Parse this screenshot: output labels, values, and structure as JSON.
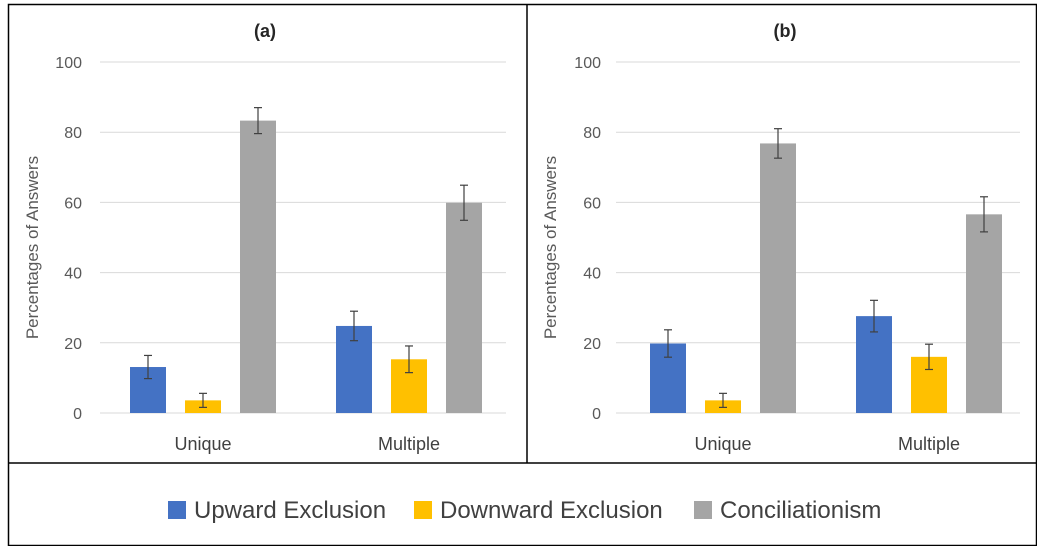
{
  "chart_data": [
    {
      "type": "bar",
      "title": "(a)",
      "ylabel": "Percentages of Answers",
      "xlabel": "",
      "ylim": [
        0,
        100
      ],
      "yticks": [
        0,
        20,
        40,
        60,
        80,
        100
      ],
      "categories": [
        "Unique",
        "Multiple"
      ],
      "grid": true,
      "series": [
        {
          "name": "Upward Exclusion",
          "values": [
            13.1,
            24.8
          ],
          "errors": [
            3.3,
            4.2
          ]
        },
        {
          "name": "Downward Exclusion",
          "values": [
            3.6,
            15.3
          ],
          "errors": [
            2.0,
            3.8
          ]
        },
        {
          "name": "Conciliationism",
          "values": [
            83.3,
            59.9
          ],
          "errors": [
            3.7,
            5.0
          ]
        }
      ]
    },
    {
      "type": "bar",
      "title": "(b)",
      "ylabel": "Percentages of Answers",
      "xlabel": "",
      "ylim": [
        0,
        100
      ],
      "yticks": [
        0,
        20,
        40,
        60,
        80,
        100
      ],
      "categories": [
        "Unique",
        "Multiple"
      ],
      "grid": true,
      "series": [
        {
          "name": "Upward Exclusion",
          "values": [
            19.8,
            27.6
          ],
          "errors": [
            3.9,
            4.5
          ]
        },
        {
          "name": "Downward Exclusion",
          "values": [
            3.6,
            16.0
          ],
          "errors": [
            2.0,
            3.6
          ]
        },
        {
          "name": "Conciliationism",
          "values": [
            76.8,
            56.6
          ],
          "errors": [
            4.2,
            5.0
          ]
        }
      ]
    }
  ],
  "legend": {
    "position": "bottom",
    "items": [
      {
        "label": "Upward Exclusion",
        "color": "#4472c4"
      },
      {
        "label": "Downward Exclusion",
        "color": "#ffc000"
      },
      {
        "label": "Conciliationism",
        "color": "#a5a5a5"
      }
    ]
  }
}
